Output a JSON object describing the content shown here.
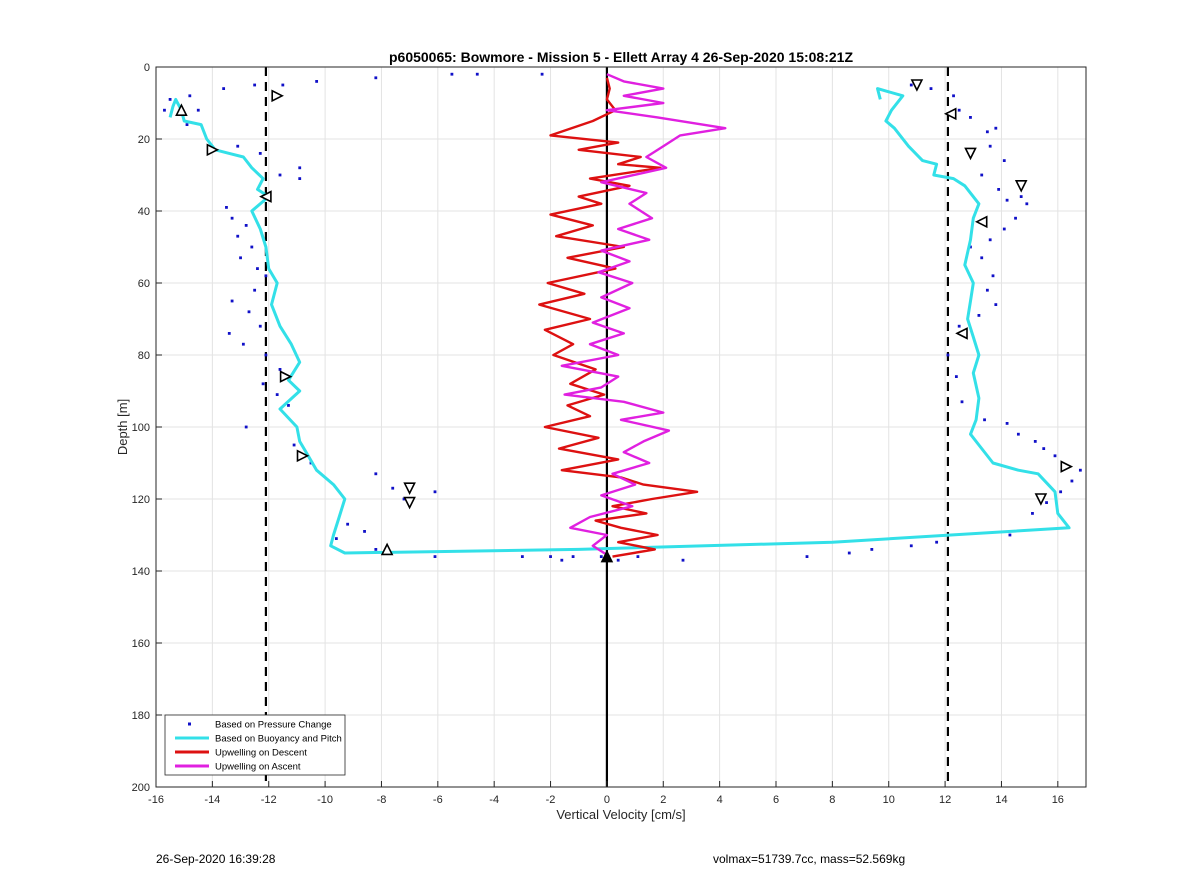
{
  "chart_data": {
    "type": "line",
    "title": "p6050065: Bowmore - Mission 5 - Ellett Array 4 26-Sep-2020 15:08:21Z",
    "xlabel": "Vertical Velocity [cm/s]",
    "ylabel": "Depth [m]",
    "xlim": [
      -16,
      17
    ],
    "ylim": [
      0,
      200
    ],
    "y_reversed": true,
    "grid": true,
    "xticks": [
      "-16",
      "-14",
      "-12",
      "-10",
      "-8",
      "-6",
      "-4",
      "-2",
      "0",
      "2",
      "4",
      "6",
      "8",
      "10",
      "12",
      "14",
      "16"
    ],
    "yticks": [
      "0",
      "20",
      "40",
      "60",
      "80",
      "100",
      "120",
      "140",
      "160",
      "180",
      "200"
    ],
    "legend_location": "bottom-left",
    "reference_lines": [
      {
        "x": -12.1,
        "style": "dashed",
        "color": "#000000"
      },
      {
        "x": 12.1,
        "style": "dashed",
        "color": "#000000"
      },
      {
        "x": 0,
        "style": "solid",
        "color": "#000000"
      }
    ],
    "series": [
      {
        "name": "Based on Pressure Change",
        "kind": "points",
        "color": "#1010c8",
        "points": [
          [
            -15.5,
            9
          ],
          [
            -15.7,
            12
          ],
          [
            -15.2,
            13
          ],
          [
            -14.9,
            16
          ],
          [
            -14.5,
            12
          ],
          [
            -14.8,
            8
          ],
          [
            -13.6,
            6
          ],
          [
            -12.5,
            5
          ],
          [
            -11.5,
            5
          ],
          [
            -10.3,
            4
          ],
          [
            -8.2,
            3
          ],
          [
            -5.5,
            2
          ],
          [
            -4.6,
            2
          ],
          [
            -2.3,
            2
          ],
          [
            10.8,
            5
          ],
          [
            11.5,
            6
          ],
          [
            12.3,
            8
          ],
          [
            12.5,
            12
          ],
          [
            12.9,
            14
          ],
          [
            13.5,
            18
          ],
          [
            13.8,
            17
          ],
          [
            13.6,
            22
          ],
          [
            14.1,
            26
          ],
          [
            13.3,
            30
          ],
          [
            13.9,
            34
          ],
          [
            14.2,
            37
          ],
          [
            14.7,
            36
          ],
          [
            14.9,
            38
          ],
          [
            14.5,
            42
          ],
          [
            14.1,
            45
          ],
          [
            13.6,
            48
          ],
          [
            12.9,
            50
          ],
          [
            13.3,
            53
          ],
          [
            13.7,
            58
          ],
          [
            13.5,
            62
          ],
          [
            13.8,
            66
          ],
          [
            13.2,
            69
          ],
          [
            12.5,
            72
          ],
          [
            12.1,
            80
          ],
          [
            12.4,
            86
          ],
          [
            12.6,
            93
          ],
          [
            13.4,
            98
          ],
          [
            14.2,
            99
          ],
          [
            14.6,
            102
          ],
          [
            15.2,
            104
          ],
          [
            15.5,
            106
          ],
          [
            15.9,
            108
          ],
          [
            16.8,
            112
          ],
          [
            16.5,
            115
          ],
          [
            16.1,
            118
          ],
          [
            15.6,
            121
          ],
          [
            15.1,
            124
          ],
          [
            14.3,
            130
          ],
          [
            11.7,
            132
          ],
          [
            10.8,
            133
          ],
          [
            9.4,
            134
          ],
          [
            8.6,
            135
          ],
          [
            7.1,
            136
          ],
          [
            -13.1,
            22
          ],
          [
            -12.3,
            24
          ],
          [
            -10.9,
            28
          ],
          [
            -11.6,
            30
          ],
          [
            -10.9,
            31
          ],
          [
            -13.5,
            39
          ],
          [
            -13.3,
            42
          ],
          [
            -12.8,
            44
          ],
          [
            -13.1,
            47
          ],
          [
            -12.6,
            50
          ],
          [
            -13.0,
            53
          ],
          [
            -12.4,
            56
          ],
          [
            -12.1,
            58
          ],
          [
            -12.5,
            62
          ],
          [
            -13.3,
            65
          ],
          [
            -12.7,
            68
          ],
          [
            -12.3,
            72
          ],
          [
            -13.4,
            74
          ],
          [
            -12.9,
            77
          ],
          [
            -12.1,
            80
          ],
          [
            -11.6,
            84
          ],
          [
            -12.2,
            88
          ],
          [
            -11.7,
            91
          ],
          [
            -11.3,
            94
          ],
          [
            -12.8,
            100
          ],
          [
            -11.1,
            105
          ],
          [
            -10.5,
            110
          ],
          [
            -8.2,
            113
          ],
          [
            -7.6,
            117
          ],
          [
            -6.1,
            118
          ],
          [
            -7.2,
            120
          ],
          [
            -9.2,
            127
          ],
          [
            -8.6,
            129
          ],
          [
            -9.6,
            131
          ],
          [
            -8.2,
            134
          ],
          [
            -6.1,
            136
          ],
          [
            -3.0,
            136
          ],
          [
            -2.0,
            136
          ],
          [
            -1.6,
            137
          ],
          [
            -1.2,
            136
          ],
          [
            -0.2,
            136
          ],
          [
            0.4,
            137
          ],
          [
            1.1,
            136
          ],
          [
            2.7,
            137
          ]
        ]
      },
      {
        "name": "Based on Buoyancy and Pitch",
        "kind": "line",
        "color": "#33e0e8",
        "points": [
          [
            -15.5,
            14
          ],
          [
            -15.4,
            11
          ],
          [
            -15.3,
            9
          ],
          [
            -15.1,
            12
          ],
          [
            -15.0,
            15
          ],
          [
            -14.4,
            16
          ],
          [
            -14.2,
            20
          ],
          [
            -13.9,
            23
          ],
          [
            -13.4,
            24
          ],
          [
            -12.9,
            25
          ],
          [
            -12.6,
            28
          ],
          [
            -12.2,
            31
          ],
          [
            -12.4,
            34
          ],
          [
            -12.0,
            36
          ],
          [
            -12.6,
            40
          ],
          [
            -12.3,
            45
          ],
          [
            -12.1,
            50
          ],
          [
            -12.0,
            56
          ],
          [
            -11.7,
            60
          ],
          [
            -11.9,
            66
          ],
          [
            -11.6,
            72
          ],
          [
            -11.2,
            77
          ],
          [
            -10.9,
            82
          ],
          [
            -11.3,
            87
          ],
          [
            -10.9,
            90
          ],
          [
            -11.6,
            95
          ],
          [
            -11.0,
            100
          ],
          [
            -10.9,
            104
          ],
          [
            -10.6,
            108
          ],
          [
            -10.3,
            112
          ],
          [
            -9.7,
            116
          ],
          [
            -9.3,
            120
          ],
          [
            -9.5,
            125
          ],
          [
            -9.7,
            130
          ],
          [
            -9.8,
            133
          ],
          [
            -9.3,
            135
          ],
          [
            -1.0,
            134
          ],
          [
            8.0,
            132
          ],
          [
            16.4,
            128
          ],
          [
            16.0,
            124
          ],
          [
            15.9,
            118
          ],
          [
            15.3,
            113
          ],
          [
            14.6,
            112
          ],
          [
            13.7,
            110
          ],
          [
            13.2,
            105
          ],
          [
            12.9,
            102
          ],
          [
            13.1,
            98
          ],
          [
            13.2,
            92
          ],
          [
            13.0,
            85
          ],
          [
            13.2,
            80
          ],
          [
            13.0,
            75
          ],
          [
            12.8,
            70
          ],
          [
            12.9,
            65
          ],
          [
            13.0,
            60
          ],
          [
            12.7,
            55
          ],
          [
            12.9,
            48
          ],
          [
            13.0,
            42
          ],
          [
            13.2,
            38
          ],
          [
            12.7,
            33
          ],
          [
            12.3,
            31
          ],
          [
            11.6,
            30
          ],
          [
            11.7,
            27
          ],
          [
            11.2,
            26
          ],
          [
            10.7,
            22
          ],
          [
            10.2,
            17
          ],
          [
            9.9,
            15
          ],
          [
            10.1,
            12
          ],
          [
            10.5,
            8
          ],
          [
            9.6,
            6
          ],
          [
            9.7,
            9
          ]
        ]
      },
      {
        "name": "Upwelling on Descent",
        "kind": "line",
        "color": "#dd1111",
        "points": [
          [
            0,
            3
          ],
          [
            0.1,
            6
          ],
          [
            0.0,
            9
          ],
          [
            0.3,
            12
          ],
          [
            -0.5,
            15
          ],
          [
            -2.0,
            19
          ],
          [
            0.4,
            21
          ],
          [
            -1.0,
            23
          ],
          [
            1.2,
            25
          ],
          [
            0.4,
            27
          ],
          [
            1.9,
            28
          ],
          [
            -0.6,
            31
          ],
          [
            0.8,
            33
          ],
          [
            -1.0,
            36
          ],
          [
            -0.2,
            38
          ],
          [
            -2.0,
            41
          ],
          [
            -0.5,
            44
          ],
          [
            -1.8,
            47
          ],
          [
            0.6,
            50
          ],
          [
            -1.4,
            53
          ],
          [
            0.3,
            56
          ],
          [
            -2.1,
            60
          ],
          [
            -0.8,
            63
          ],
          [
            -2.4,
            66
          ],
          [
            -0.6,
            70
          ],
          [
            -2.2,
            73
          ],
          [
            -1.2,
            77
          ],
          [
            -1.9,
            80
          ],
          [
            -0.4,
            84
          ],
          [
            -1.3,
            88
          ],
          [
            -0.1,
            91
          ],
          [
            -1.4,
            94
          ],
          [
            -0.6,
            97
          ],
          [
            -2.2,
            100
          ],
          [
            -0.3,
            103
          ],
          [
            -1.7,
            106
          ],
          [
            0.4,
            109
          ],
          [
            -1.6,
            112
          ],
          [
            0.5,
            114
          ],
          [
            1.3,
            116
          ],
          [
            3.2,
            118
          ],
          [
            1.6,
            120
          ],
          [
            0.2,
            122
          ],
          [
            1.4,
            124
          ],
          [
            -0.4,
            126
          ],
          [
            0.5,
            128
          ],
          [
            1.8,
            130
          ],
          [
            0.4,
            132
          ],
          [
            1.7,
            134
          ],
          [
            0.2,
            136
          ]
        ]
      },
      {
        "name": "Upwelling on Ascent",
        "kind": "line",
        "color": "#e020e0",
        "points": [
          [
            0,
            2
          ],
          [
            0.6,
            4
          ],
          [
            2.0,
            6
          ],
          [
            0.6,
            8
          ],
          [
            2.0,
            10
          ],
          [
            0.0,
            12
          ],
          [
            1.8,
            14
          ],
          [
            4.2,
            17
          ],
          [
            2.6,
            19
          ],
          [
            2.0,
            22
          ],
          [
            1.4,
            25
          ],
          [
            2.1,
            28
          ],
          [
            -0.2,
            32
          ],
          [
            1.4,
            35
          ],
          [
            0.8,
            38
          ],
          [
            1.6,
            42
          ],
          [
            0.4,
            45
          ],
          [
            1.5,
            48
          ],
          [
            -0.2,
            51
          ],
          [
            0.8,
            54
          ],
          [
            -0.3,
            57
          ],
          [
            0.9,
            60
          ],
          [
            -0.2,
            64
          ],
          [
            0.8,
            67
          ],
          [
            -0.5,
            71
          ],
          [
            0.6,
            74
          ],
          [
            -0.6,
            77
          ],
          [
            0.4,
            80
          ],
          [
            -1.6,
            83
          ],
          [
            0.4,
            86
          ],
          [
            -0.2,
            89
          ],
          [
            -1.5,
            91
          ],
          [
            0.6,
            93
          ],
          [
            2.0,
            96
          ],
          [
            0.5,
            98
          ],
          [
            2.2,
            101
          ],
          [
            1.3,
            104
          ],
          [
            0.6,
            107
          ],
          [
            1.5,
            110
          ],
          [
            0.2,
            113
          ],
          [
            1.0,
            116
          ],
          [
            -0.2,
            119
          ],
          [
            0.9,
            122
          ],
          [
            -0.6,
            125
          ],
          [
            -1.3,
            128
          ],
          [
            0.0,
            130
          ],
          [
            -0.5,
            133
          ],
          [
            0.1,
            136
          ]
        ]
      }
    ],
    "markers": [
      {
        "x": -15.1,
        "y": 12,
        "shape": "triangle-up"
      },
      {
        "x": -14.0,
        "y": 23,
        "shape": "triangle-right"
      },
      {
        "x": -11.7,
        "y": 8,
        "shape": "triangle-right"
      },
      {
        "x": -12.1,
        "y": 36,
        "shape": "triangle-left"
      },
      {
        "x": -11.4,
        "y": 86,
        "shape": "triangle-right"
      },
      {
        "x": -10.8,
        "y": 108,
        "shape": "triangle-right"
      },
      {
        "x": -7.0,
        "y": 117,
        "shape": "triangle-down"
      },
      {
        "x": -7.0,
        "y": 121,
        "shape": "triangle-down"
      },
      {
        "x": -7.8,
        "y": 134,
        "shape": "triangle-up"
      },
      {
        "x": 0.0,
        "y": 136,
        "shape": "triangle-up"
      },
      {
        "x": 11.0,
        "y": 5,
        "shape": "triangle-down"
      },
      {
        "x": 12.2,
        "y": 13,
        "shape": "triangle-left"
      },
      {
        "x": 12.9,
        "y": 24,
        "shape": "triangle-down"
      },
      {
        "x": 14.7,
        "y": 33,
        "shape": "triangle-down"
      },
      {
        "x": 13.3,
        "y": 43,
        "shape": "triangle-left"
      },
      {
        "x": 12.6,
        "y": 74,
        "shape": "triangle-left"
      },
      {
        "x": 16.3,
        "y": 111,
        "shape": "triangle-right"
      },
      {
        "x": 15.4,
        "y": 120,
        "shape": "triangle-down"
      }
    ]
  },
  "footer": {
    "left_text": "26-Sep-2020 16:39:28",
    "right_text": "volmax=51739.7cc, mass=52.569kg"
  }
}
